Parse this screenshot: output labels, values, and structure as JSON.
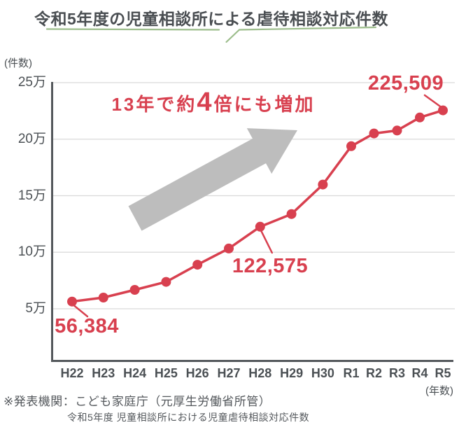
{
  "title": "令和5年度の児童相談所による虐待相談対応件数",
  "colors": {
    "red": "#d8404f",
    "green": "#9cbd8b",
    "arrow_gray": "#bdbdbd",
    "axis": "#54585c",
    "grid": "#d9d9d9",
    "title_text": "#4a4e52",
    "label_text": "#4b5054"
  },
  "annotation": {
    "full": "13年で約4倍にも増加",
    "prefix": "13年で約",
    "big": "4",
    "suffix": "倍にも増加"
  },
  "footer": {
    "line1": "※発表機関：こども家庭庁（元厚生労働省所管）",
    "line2": "令和5年度 児童相談所における児童虐待相談対応件数"
  },
  "chart_data": {
    "type": "line",
    "title": "令和5年度の児童相談所による虐待相談対応件数",
    "xlabel": "(年数)",
    "ylabel": "(件数)",
    "x": [
      "H22",
      "H23",
      "H24",
      "H25",
      "H26",
      "H27",
      "H28",
      "H29",
      "H30",
      "R1",
      "R2",
      "R3",
      "R4",
      "R5"
    ],
    "values": [
      56384,
      59919,
      66701,
      73802,
      88931,
      103286,
      122575,
      133778,
      159838,
      193780,
      205044,
      207660,
      219170,
      225509
    ],
    "ylim": [
      0,
      250000
    ],
    "yticks": [
      {
        "label": "5万",
        "value": 50000
      },
      {
        "label": "10万",
        "value": 100000
      },
      {
        "label": "15万",
        "value": 150000
      },
      {
        "label": "20万",
        "value": 200000
      },
      {
        "label": "25万",
        "value": 250000
      }
    ],
    "grid": true,
    "legend": "none",
    "line_color": "#d8404f",
    "point_labels": [
      {
        "index": 0,
        "text": "56,384"
      },
      {
        "index": 6,
        "text": "122,575"
      },
      {
        "index": 13,
        "text": "225,509"
      }
    ]
  }
}
